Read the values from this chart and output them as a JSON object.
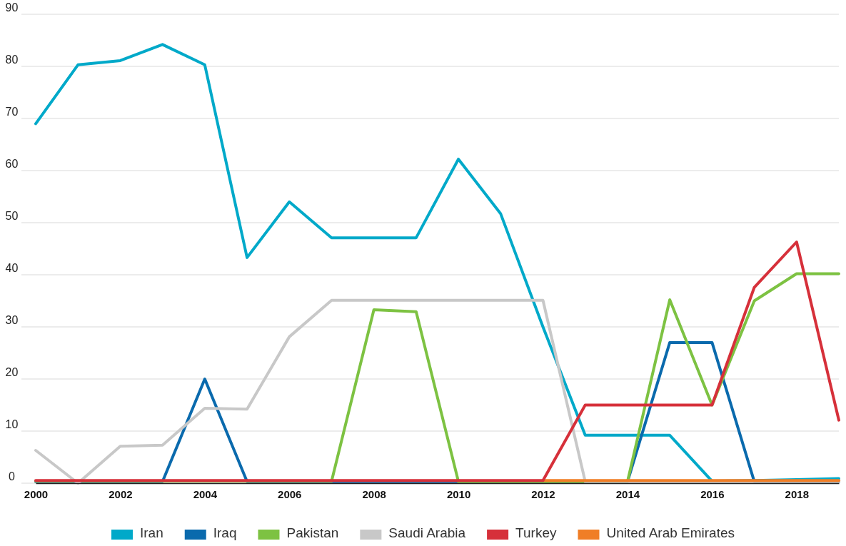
{
  "chart_data": {
    "type": "line",
    "x": [
      2000,
      2001,
      2002,
      2003,
      2004,
      2005,
      2006,
      2007,
      2008,
      2009,
      2010,
      2011,
      2012,
      2013,
      2014,
      2015,
      2016,
      2017,
      2018,
      2019
    ],
    "xlim": [
      2000,
      2019
    ],
    "xticks": [
      2000,
      2002,
      2004,
      2006,
      2008,
      2010,
      2012,
      2014,
      2016,
      2018
    ],
    "ylim": [
      0,
      90
    ],
    "yticks": [
      0,
      10,
      20,
      30,
      40,
      50,
      60,
      70,
      80,
      90
    ],
    "grid": "y",
    "legend": "bottom",
    "line_style": "solid",
    "marker": "none",
    "series": [
      {
        "name": "Iran",
        "color": "#00a9c9",
        "values": [
          69,
          80.3,
          81.1,
          84.2,
          80.3,
          43.3,
          54,
          47.1,
          47.1,
          47.1,
          62.2,
          51.7,
          30,
          9.2,
          9.2,
          9.2,
          0.4,
          0.5,
          0.7,
          0.9
        ]
      },
      {
        "name": "Iraq",
        "color": "#0a6aad",
        "values": [
          0.3,
          0.3,
          0.3,
          0.3,
          20,
          0.3,
          0.3,
          0.3,
          0.3,
          0.3,
          0.3,
          0.3,
          0.3,
          0.3,
          0.3,
          27,
          27,
          0.3,
          0.3,
          0.3
        ]
      },
      {
        "name": "Pakistan",
        "color": "#7dc242",
        "values": [
          0.4,
          0.4,
          0.4,
          0.4,
          0.4,
          0.4,
          0.4,
          0.4,
          33.3,
          32.9,
          0.3,
          0.3,
          0.3,
          0.3,
          0.3,
          35.2,
          15,
          35,
          40.2,
          40.2
        ]
      },
      {
        "name": "Saudi Arabia",
        "color": "#c8c8c8",
        "values": [
          6.3,
          0,
          7.1,
          7.3,
          14.4,
          14.2,
          28.1,
          35.1,
          35.1,
          35.1,
          35.1,
          35.1,
          35.1,
          0.3,
          0.3,
          0.3,
          0.3,
          0.3,
          0.3,
          0.3
        ]
      },
      {
        "name": "Turkey",
        "color": "#d6303a",
        "values": [
          0.5,
          0.5,
          0.5,
          0.5,
          0.5,
          0.5,
          0.5,
          0.5,
          0.5,
          0.5,
          0.5,
          0.5,
          0.5,
          15,
          15,
          15,
          15,
          37.6,
          46.3,
          12.1
        ]
      },
      {
        "name": "United Arab Emirates",
        "color": "#f07e26",
        "values": [
          null,
          null,
          null,
          null,
          null,
          null,
          null,
          null,
          null,
          null,
          null,
          null,
          0.5,
          0.5,
          0.5,
          0.5,
          0.5,
          0.5,
          0.5,
          0.5
        ]
      }
    ]
  }
}
